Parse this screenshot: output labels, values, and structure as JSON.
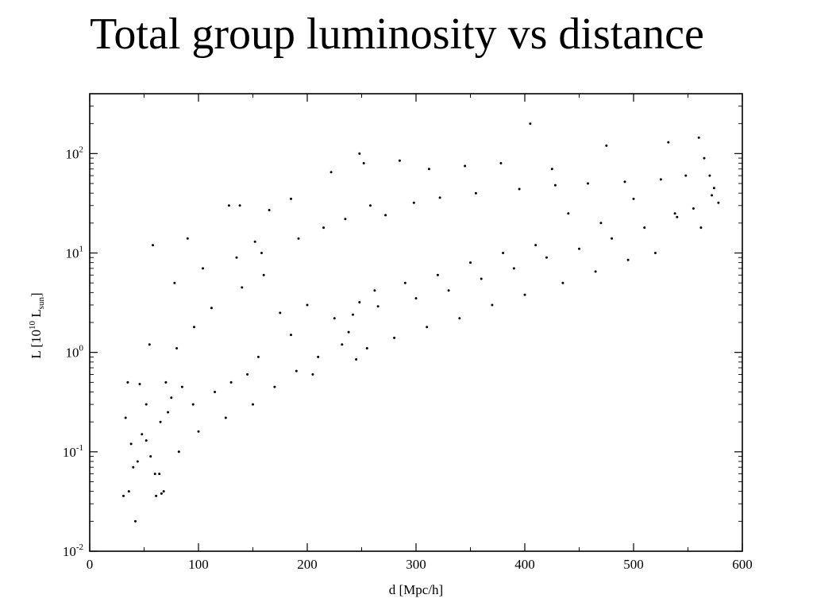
{
  "page": {
    "title": "Total group luminosity vs distance"
  },
  "chart_data": {
    "type": "scatter",
    "title": "",
    "xlabel": "d [Mpc/h]",
    "ylabel": {
      "main": "L [10",
      "sup": "10",
      "mid": " L",
      "sub": "sun",
      "end": "]"
    },
    "xlim": [
      0,
      600
    ],
    "ylim": [
      0.01,
      400
    ],
    "yscale": "log",
    "grid": false,
    "x_ticks": [
      "0",
      "100",
      "200",
      "300",
      "400",
      "500",
      "600"
    ],
    "y_ticks": [
      {
        "base": "10",
        "exp": "-2"
      },
      {
        "base": "10",
        "exp": "-1"
      },
      {
        "base": "10",
        "exp": "0"
      },
      {
        "base": "10",
        "exp": "1"
      },
      {
        "base": "10",
        "exp": "2"
      }
    ],
    "marker_color": "#000000",
    "series": [
      {
        "points": [
          [
            31,
            0.036
          ],
          [
            36,
            0.04
          ],
          [
            40,
            0.07
          ],
          [
            42,
            0.02
          ],
          [
            33,
            0.22
          ],
          [
            46,
            0.48
          ],
          [
            52,
            0.13
          ],
          [
            56,
            0.09
          ],
          [
            61,
            0.036
          ],
          [
            66,
            0.038
          ],
          [
            64,
            0.06
          ],
          [
            68,
            0.04
          ],
          [
            72,
            0.25
          ],
          [
            58,
            12
          ],
          [
            90,
            14
          ],
          [
            128,
            30
          ],
          [
            138,
            30
          ],
          [
            152,
            13
          ],
          [
            165,
            27
          ],
          [
            185,
            35
          ],
          [
            222,
            65
          ],
          [
            248,
            100
          ],
          [
            252,
            80
          ],
          [
            285,
            85
          ],
          [
            312,
            70
          ],
          [
            345,
            75
          ],
          [
            378,
            80
          ],
          [
            425,
            70
          ],
          [
            475,
            120
          ],
          [
            405,
            200
          ],
          [
            532,
            130
          ],
          [
            560,
            145
          ],
          [
            565,
            90
          ],
          [
            570,
            60
          ],
          [
            574,
            45
          ],
          [
            578,
            32
          ],
          [
            538,
            25
          ],
          [
            500,
            35
          ],
          [
            470,
            20
          ],
          [
            440,
            25
          ],
          [
            410,
            12
          ],
          [
            380,
            10
          ],
          [
            350,
            8
          ],
          [
            320,
            6
          ],
          [
            290,
            5
          ],
          [
            262,
            4.2
          ],
          [
            248,
            3.2
          ],
          [
            242,
            2.4
          ],
          [
            238,
            1.6
          ],
          [
            232,
            1.2
          ],
          [
            210,
            0.9
          ],
          [
            190,
            0.65
          ],
          [
            170,
            0.45
          ],
          [
            150,
            0.3
          ],
          [
            125,
            0.22
          ],
          [
            100,
            0.16
          ],
          [
            82,
            0.1
          ],
          [
            60,
            0.06
          ],
          [
            44,
            0.08
          ],
          [
            70,
            0.5
          ],
          [
            80,
            1.1
          ],
          [
            96,
            1.8
          ],
          [
            112,
            2.8
          ],
          [
            140,
            4.5
          ],
          [
            160,
            6
          ],
          [
            200,
            3
          ],
          [
            225,
            2.2
          ],
          [
            265,
            2.9
          ],
          [
            300,
            3.5
          ],
          [
            330,
            4.2
          ],
          [
            360,
            5.5
          ],
          [
            390,
            7
          ],
          [
            420,
            9
          ],
          [
            450,
            11
          ],
          [
            480,
            14
          ],
          [
            510,
            18
          ],
          [
            540,
            23
          ],
          [
            555,
            28
          ],
          [
            572,
            38
          ],
          [
            562,
            18
          ],
          [
            520,
            10
          ],
          [
            495,
            8.5
          ],
          [
            465,
            6.5
          ],
          [
            435,
            5
          ],
          [
            400,
            3.8
          ],
          [
            370,
            3
          ],
          [
            340,
            2.2
          ],
          [
            310,
            1.8
          ],
          [
            280,
            1.4
          ],
          [
            255,
            1.1
          ],
          [
            245,
            0.85
          ],
          [
            205,
            0.6
          ],
          [
            185,
            1.5
          ],
          [
            175,
            2.5
          ],
          [
            155,
            0.9
          ],
          [
            145,
            0.6
          ],
          [
            130,
            0.5
          ],
          [
            115,
            0.4
          ],
          [
            95,
            0.3
          ],
          [
            85,
            0.45
          ],
          [
            75,
            0.35
          ],
          [
            65,
            0.2
          ],
          [
            52,
            0.3
          ],
          [
            48,
            0.15
          ],
          [
            38,
            0.12
          ],
          [
            35,
            0.5
          ],
          [
            55,
            1.2
          ],
          [
            78,
            5
          ],
          [
            104,
            7
          ],
          [
            135,
            9
          ],
          [
            158,
            10
          ],
          [
            192,
            14
          ],
          [
            215,
            18
          ],
          [
            235,
            22
          ],
          [
            258,
            30
          ],
          [
            272,
            24
          ],
          [
            298,
            32
          ],
          [
            322,
            36
          ],
          [
            355,
            40
          ],
          [
            395,
            44
          ],
          [
            428,
            48
          ],
          [
            458,
            50
          ],
          [
            492,
            52
          ],
          [
            525,
            55
          ],
          [
            548,
            60
          ]
        ]
      }
    ]
  }
}
